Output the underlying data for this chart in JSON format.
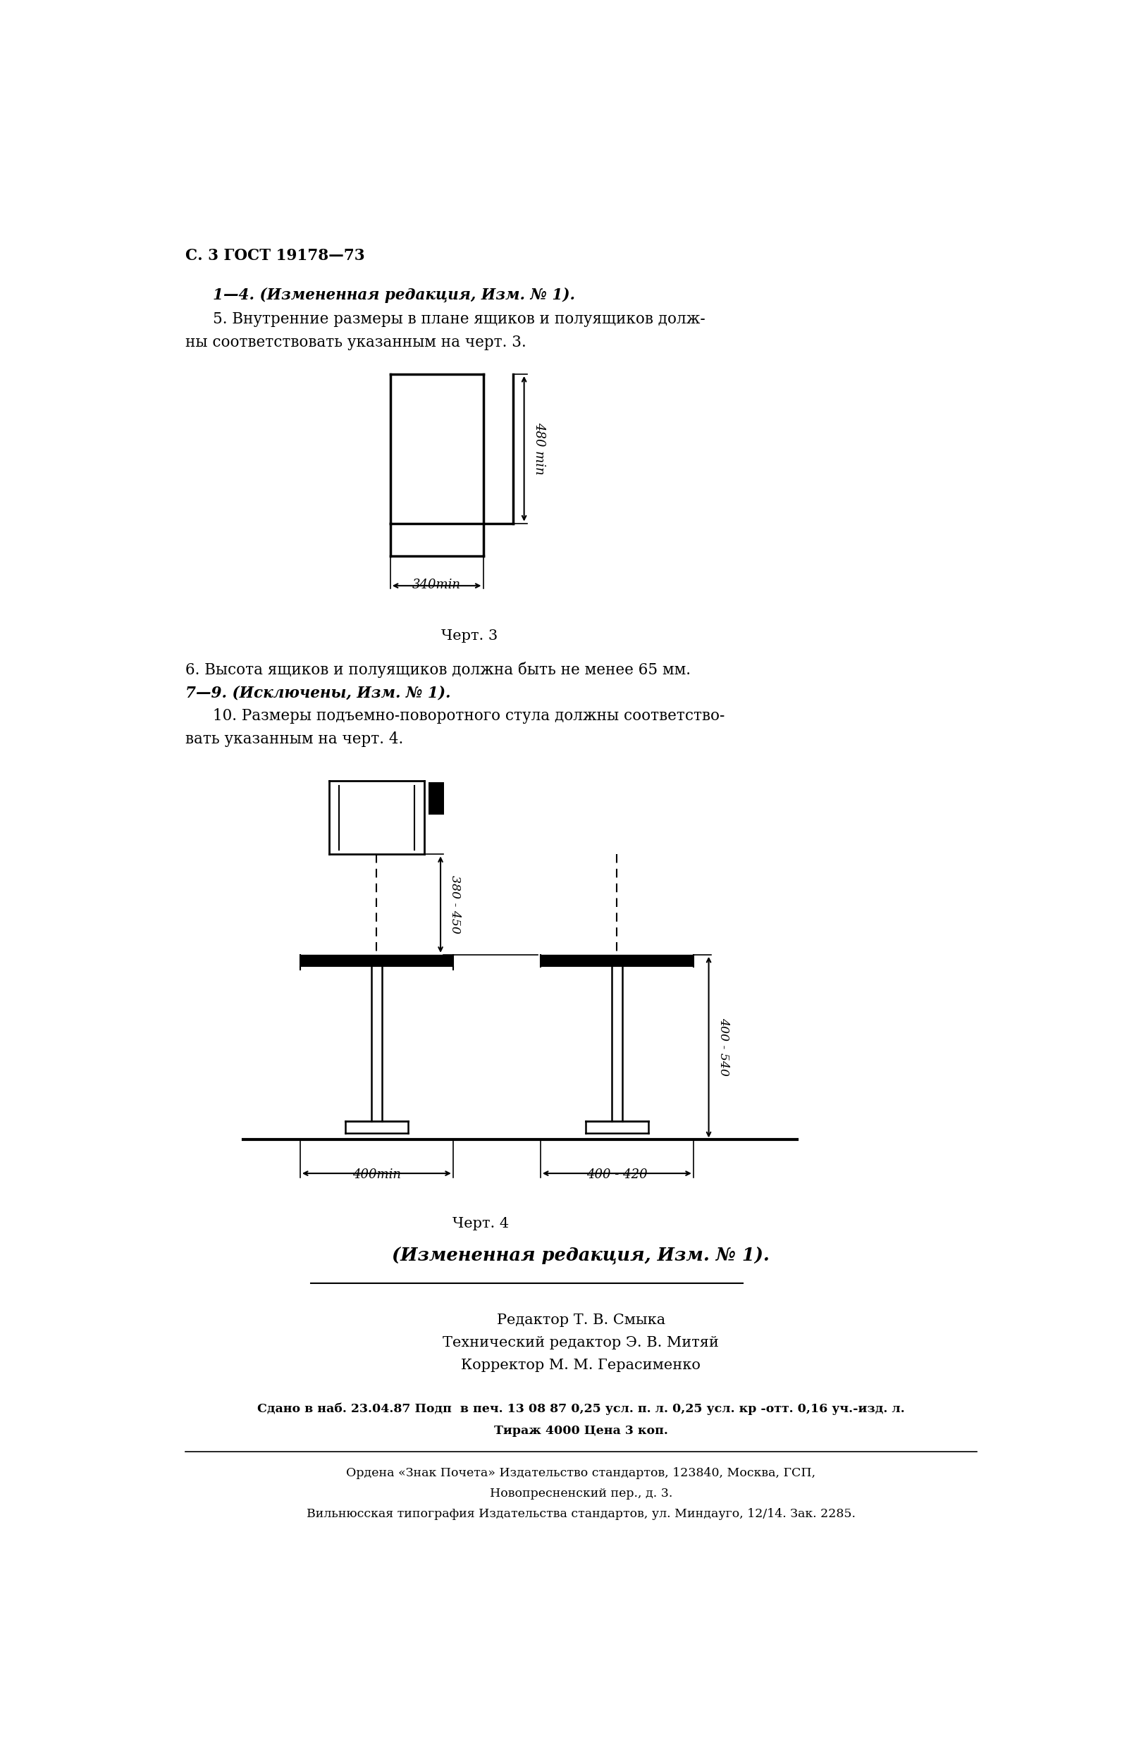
{
  "page_header": "С. 3 ГОСТ 19178—73",
  "text_block1_line1": "1—4. (Измененная редакция, Изм. № 1).",
  "text_block1_line2": "5. Внутренние размеры в плане ящиков и полуящиков долж-",
  "text_block1_line3": "ны соответствовать указанным на черт. 3.",
  "chert3_label": "Черт. 3",
  "dim_480": "480 min",
  "dim_340": "340min",
  "text_block2_line1": "6. Высота ящиков и полуящиков должна быть не менее 65 мм.",
  "text_block2_line2": "7—9. (Исключены, Изм. № 1).",
  "text_block2_line3": "10. Размеры подъемно-поворотного стула должны соответство-",
  "text_block2_line4": "вать указанным на черт. 4.",
  "chert4_label": "Черт. 4",
  "dim_380_450": "380 - 450",
  "dim_400_540": "400 - 540",
  "dim_400min": "400min",
  "dim_400_420": "400 - 420",
  "changed_text": "(Измененная редакция, Изм. № 1).",
  "editor_line1": "Редактор Т. В. Смыка",
  "editor_line2": "Технический редактор Э. В. Митяй",
  "editor_line3": "Корректор М. М. Герасименко",
  "footer_line1": "Сдано в наб. 23.04.87 Подп  в печ. 13 08 87 0,25 усл. п. л. 0,25 усл. кр -отт. 0,16 уч.-изд. л.",
  "footer_line2": "Тираж 4000 Цена 3 коп.",
  "footer_line3": "Ордена «Знак Почета» Издательство стандартов, 123840, Москва, ГСП,",
  "footer_line4": "Новопресненский пер., д. 3.",
  "footer_line5": "Вильнюсская типография Издательства стандартов, ул. Миндауго, 12/14. Зак. 2285.",
  "bg_color": "#ffffff",
  "text_color": "#000000",
  "line_color": "#000000"
}
